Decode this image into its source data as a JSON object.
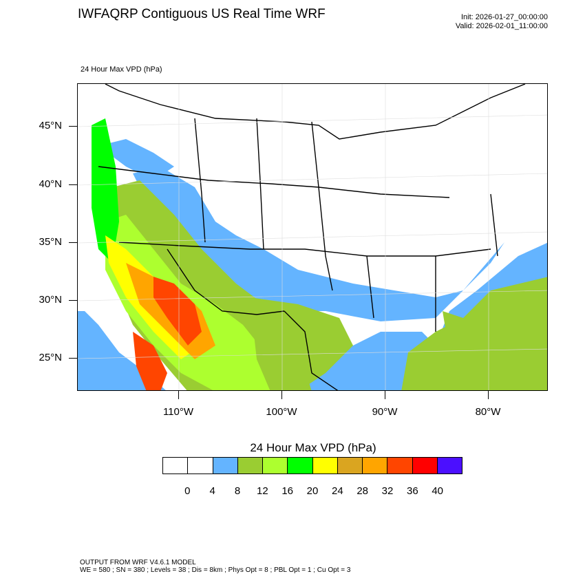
{
  "header": {
    "title": "IWFAQRP Contiguous US Real Time WRF",
    "init": "Init: 2026-01-27_00:00:00",
    "valid": "Valid: 2026-02-01_11:00:00"
  },
  "field_label": "24 Hour Max VPD   (hPa)",
  "map": {
    "lat_labels": [
      "45°N",
      "40°N",
      "35°N",
      "30°N",
      "25°N"
    ],
    "lon_labels": [
      "110°W",
      "100°W",
      "90°W",
      "80°W"
    ]
  },
  "colorbar": {
    "title": "24 Hour Max VPD  (hPa)",
    "labels": [
      "0",
      "4",
      "8",
      "12",
      "16",
      "20",
      "24",
      "28",
      "32",
      "36",
      "40"
    ],
    "colors": [
      "#ffffff",
      "#ffffff",
      "#64b4ff",
      "#9acd32",
      "#adff2f",
      "#00ff00",
      "#ffff00",
      "#daa520",
      "#ffa500",
      "#ff4500",
      "#ff0000",
      "#4b0fff"
    ]
  },
  "footer": {
    "line1": "OUTPUT FROM WRF V4.6.1 MODEL",
    "line2": "WE = 580 ; SN = 380 ; Levels = 38 ; Dis = 8km ; Phys Opt = 8 ; PBL Opt = 1 ; Cu Opt = 3"
  }
}
